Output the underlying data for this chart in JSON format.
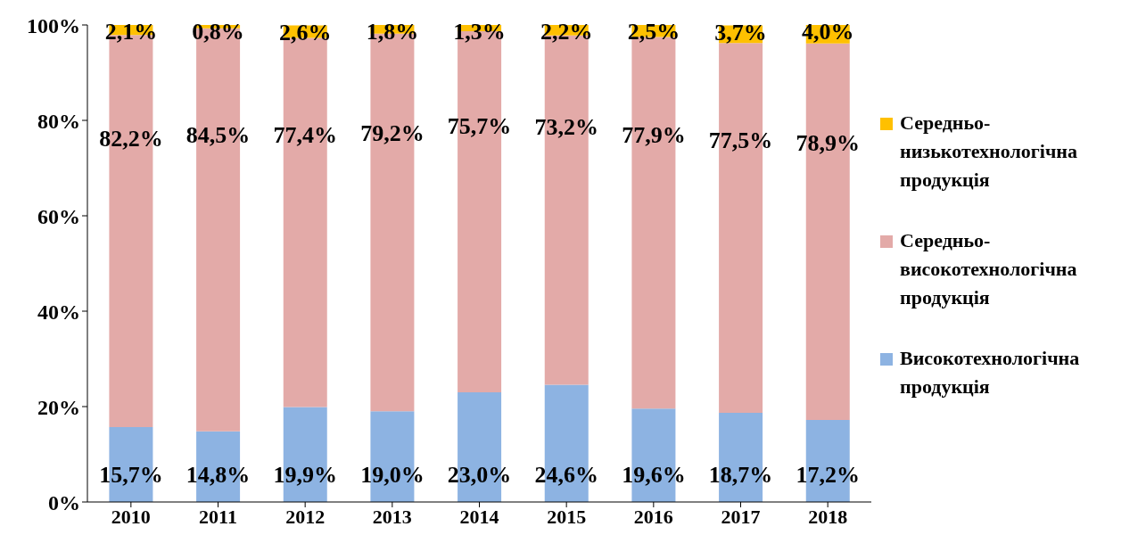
{
  "chart_data": {
    "type": "bar",
    "stacked": true,
    "categories": [
      "2010",
      "2011",
      "2012",
      "2013",
      "2014",
      "2015",
      "2016",
      "2017",
      "2018"
    ],
    "series": [
      {
        "name": "Високотехнологічна продукція",
        "color": "#8db3e2",
        "values": [
          15.7,
          14.8,
          19.9,
          19.0,
          23.0,
          24.6,
          19.6,
          18.7,
          17.2
        ],
        "value_labels": [
          "15,7%",
          "14,8%",
          "19,9%",
          "19,0%",
          "23,0%",
          "24,6%",
          "19,6%",
          "18,7%",
          "17,2%"
        ]
      },
      {
        "name": "Середньо-високотехнологічна продукція",
        "color": "#e3aaa8",
        "values": [
          82.2,
          84.5,
          77.4,
          79.2,
          75.7,
          73.2,
          77.9,
          77.5,
          78.9
        ],
        "value_labels": [
          "82,2%",
          "84,5%",
          "77,4%",
          "79,2%",
          "75,7%",
          "73,2%",
          "77,9%",
          "77,5%",
          "78,9%"
        ]
      },
      {
        "name": "Середньо-низькотехнологічна продукція",
        "color": "#ffc000",
        "values": [
          2.1,
          0.8,
          2.6,
          1.8,
          1.3,
          2.2,
          2.5,
          3.7,
          4.0
        ],
        "value_labels": [
          "2,1%",
          "0,8%",
          "2,6%",
          "1,8%",
          "1,3%",
          "2,2%",
          "2,5%",
          "3,7%",
          "4,0%"
        ]
      }
    ],
    "ylim": [
      0,
      100
    ],
    "yticks": [
      {
        "value": 0,
        "label": "0%"
      },
      {
        "value": 20,
        "label": "20%"
      },
      {
        "value": 40,
        "label": "40%"
      },
      {
        "value": 60,
        "label": "60%"
      },
      {
        "value": 80,
        "label": "80%"
      },
      {
        "value": 100,
        "label": "100%"
      }
    ],
    "legend": "right"
  }
}
